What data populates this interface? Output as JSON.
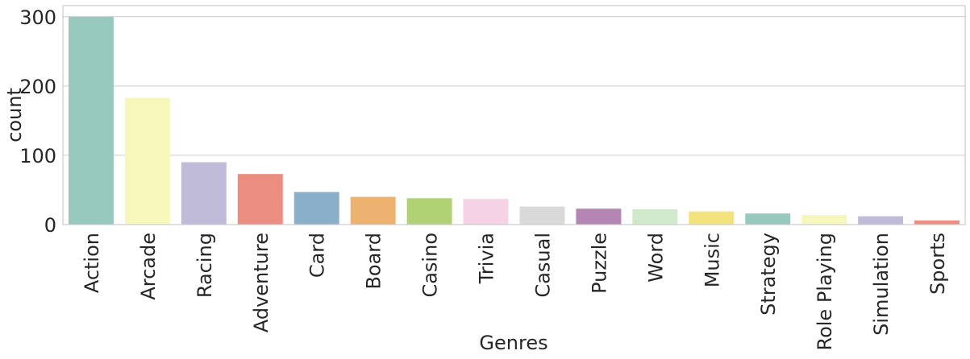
{
  "chart_data": {
    "type": "bar",
    "x_label": "Genres",
    "y_label": "count",
    "categories": [
      "Action",
      "Arcade",
      "Racing",
      "Adventure",
      "Card",
      "Board",
      "Casino",
      "Trivia",
      "Casual",
      "Puzzle",
      "Word",
      "Music",
      "Strategy",
      "Role Playing",
      "Simulation",
      "Sports"
    ],
    "values": [
      300,
      183,
      90,
      73,
      47,
      40,
      38,
      37,
      26,
      23,
      22,
      19,
      16,
      14,
      12,
      6
    ],
    "colors": [
      "#98c9bf",
      "#f8f7bb",
      "#bfbbd9",
      "#eb8d80",
      "#8aafca",
      "#eeb270",
      "#b0d274",
      "#f6d2e6",
      "#d9d9d9",
      "#b585b6",
      "#d0e8cb",
      "#f2e37c",
      "#98c9bf",
      "#f8f7bb",
      "#bfbbd9",
      "#eb8d80"
    ],
    "ylim": [
      0,
      316
    ],
    "yticks": [
      0,
      100,
      200,
      300
    ],
    "grid": true
  }
}
